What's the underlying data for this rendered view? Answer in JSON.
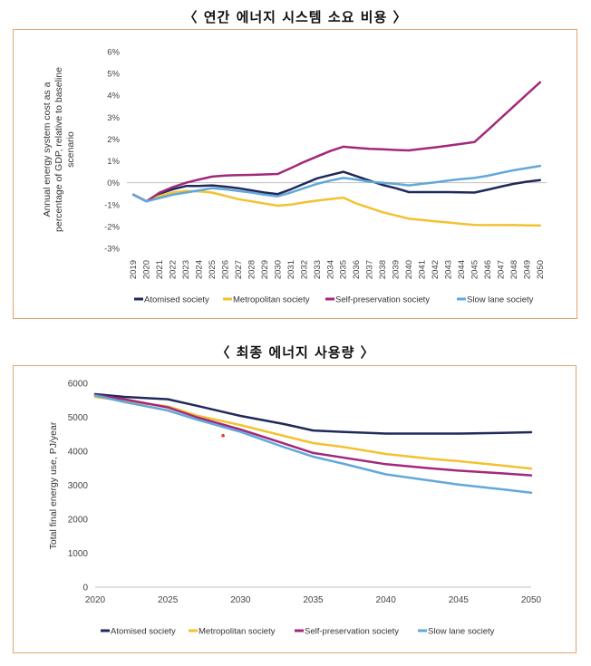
{
  "colors": {
    "atomised": "#1f2a5c",
    "metropolitan": "#f2c231",
    "self_preservation": "#a3287a",
    "slow_lane": "#62a8d9",
    "panel_border": "#e8a36a",
    "axis": "#bfbfbf"
  },
  "chart_data": [
    {
      "type": "line",
      "title": "〈 연간 에너지 시스템 소요 비용 〉",
      "xlabel": "",
      "ylabel": "Annual energy system cost as a percentage of GDP, relative to baseline scenario",
      "ylabel_lines": [
        "Annual energy system cost as a",
        "percentage of GDP, relative to baseline",
        "scenario"
      ],
      "categories": [
        "2019",
        "2020",
        "2021",
        "2022",
        "2023",
        "2024",
        "2025",
        "2026",
        "2027",
        "2028",
        "2029",
        "2030",
        "2031",
        "2032",
        "2033",
        "2034",
        "2035",
        "2036",
        "2037",
        "2038",
        "2039",
        "2040",
        "2041",
        "2042",
        "2043",
        "2044",
        "2045",
        "2046",
        "2047",
        "2048",
        "2049",
        "2050"
      ],
      "yticks": [
        -3,
        -2,
        -1,
        0,
        1,
        2,
        3,
        4,
        5,
        6
      ],
      "ytick_labels": [
        "-3%",
        "-2%",
        "-1%",
        "0%",
        "1%",
        "2%",
        "3%",
        "4%",
        "5%",
        "6%"
      ],
      "ylim": [
        -3,
        6
      ],
      "series": [
        {
          "name": "Atomised society",
          "color_key": "atomised",
          "values": [
            -0.55,
            -0.85,
            -0.5,
            -0.3,
            -0.15,
            -0.15,
            -0.12,
            -0.18,
            -0.25,
            -0.35,
            -0.45,
            -0.52,
            -0.3,
            -0.05,
            0.2,
            0.35,
            0.5,
            0.3,
            0.1,
            -0.1,
            -0.25,
            -0.43,
            -0.43,
            -0.43,
            -0.43,
            -0.44,
            -0.45,
            -0.32,
            -0.18,
            -0.05,
            0.05,
            0.12
          ]
        },
        {
          "name": "Metropolitan society",
          "color_key": "metropolitan",
          "values": [
            -0.55,
            -0.85,
            -0.6,
            -0.45,
            -0.38,
            -0.4,
            -0.45,
            -0.6,
            -0.75,
            -0.85,
            -0.95,
            -1.05,
            -1.0,
            -0.9,
            -0.82,
            -0.75,
            -0.68,
            -0.95,
            -1.15,
            -1.35,
            -1.5,
            -1.65,
            -1.7,
            -1.77,
            -1.82,
            -1.88,
            -1.93,
            -1.94,
            -1.94,
            -1.94,
            -1.95,
            -1.95
          ]
        },
        {
          "name": "Self-preservation society",
          "color_key": "self_preservation",
          "values": [
            -0.55,
            -0.85,
            -0.45,
            -0.2,
            0.0,
            0.15,
            0.28,
            0.33,
            0.35,
            0.36,
            0.38,
            0.4,
            0.67,
            0.95,
            1.2,
            1.45,
            1.65,
            1.6,
            1.55,
            1.53,
            1.5,
            1.48,
            1.55,
            1.62,
            1.7,
            1.78,
            1.86,
            2.4,
            2.95,
            3.5,
            4.05,
            4.6
          ]
        },
        {
          "name": "Slow lane society",
          "color_key": "slow_lane",
          "values": [
            -0.55,
            -0.85,
            -0.7,
            -0.55,
            -0.45,
            -0.35,
            -0.25,
            -0.3,
            -0.38,
            -0.45,
            -0.55,
            -0.62,
            -0.45,
            -0.25,
            -0.05,
            0.1,
            0.22,
            0.15,
            0.05,
            0.0,
            -0.05,
            -0.12,
            -0.05,
            0.02,
            0.1,
            0.17,
            0.22,
            0.32,
            0.45,
            0.57,
            0.67,
            0.77
          ]
        }
      ],
      "legend_position": "bottom"
    },
    {
      "type": "line",
      "title": "〈 최종 에너지 사용량 〉",
      "xlabel": "",
      "ylabel": "Total final energy use, PJ/year",
      "x": [
        2020,
        2025,
        2030,
        2035,
        2040,
        2045,
        2050
      ],
      "xticks": [
        2020,
        2025,
        2030,
        2035,
        2040,
        2045,
        2050
      ],
      "yticks": [
        0,
        1000,
        2000,
        3000,
        4000,
        5000,
        6000
      ],
      "ytick_labels": [
        "0",
        "1000",
        "2000",
        "3000",
        "4000",
        "5000",
        "6000"
      ],
      "ylim": [
        0,
        6000
      ],
      "xlim": [
        2020,
        2050
      ],
      "series": [
        {
          "name": "Atomised society",
          "color_key": "atomised",
          "x": [
            2020,
            2022,
            2025,
            2027,
            2030,
            2033,
            2035,
            2037,
            2040,
            2043,
            2045,
            2048,
            2050
          ],
          "values": [
            5680,
            5600,
            5530,
            5340,
            5040,
            4800,
            4610,
            4570,
            4520,
            4520,
            4520,
            4540,
            4560
          ]
        },
        {
          "name": "Metropolitan society",
          "color_key": "metropolitan",
          "x": [
            2020,
            2022,
            2025,
            2027,
            2030,
            2033,
            2035,
            2037,
            2040,
            2043,
            2045,
            2048,
            2050
          ],
          "values": [
            5600,
            5480,
            5320,
            5050,
            4770,
            4450,
            4240,
            4130,
            3920,
            3780,
            3710,
            3580,
            3490
          ]
        },
        {
          "name": "Self-preservation society",
          "color_key": "self_preservation",
          "x": [
            2020,
            2022,
            2025,
            2027,
            2030,
            2033,
            2035,
            2037,
            2040,
            2043,
            2045,
            2048,
            2050
          ],
          "values": [
            5650,
            5530,
            5290,
            5000,
            4640,
            4230,
            3950,
            3820,
            3620,
            3500,
            3430,
            3350,
            3290
          ]
        },
        {
          "name": "Slow lane society",
          "color_key": "slow_lane",
          "x": [
            2020,
            2022,
            2025,
            2027,
            2030,
            2033,
            2035,
            2037,
            2040,
            2043,
            2045,
            2048,
            2050
          ],
          "values": [
            5640,
            5450,
            5200,
            4930,
            4570,
            4120,
            3840,
            3640,
            3320,
            3140,
            3020,
            2880,
            2780
          ]
        }
      ],
      "annotation_point": {
        "x": 2028.8,
        "y": 4460,
        "color": "#e03a2f"
      },
      "legend_position": "bottom"
    }
  ]
}
